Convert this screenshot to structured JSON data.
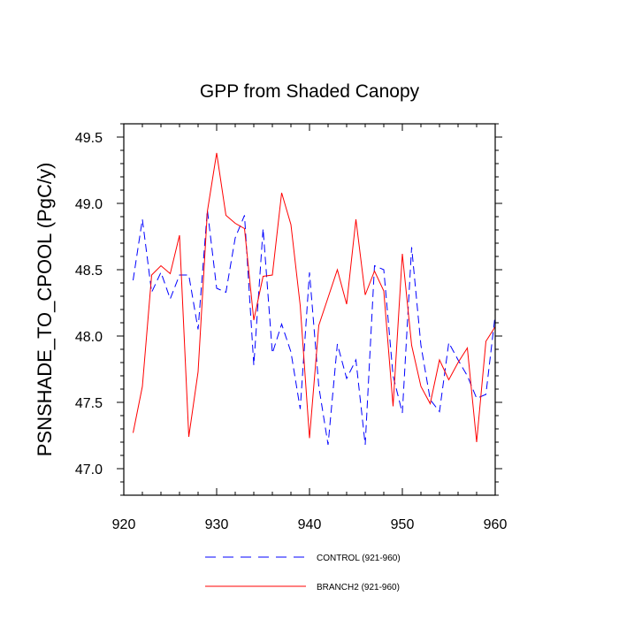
{
  "chart_data": {
    "type": "line",
    "title": "GPP from Shaded Canopy",
    "xlabel": "",
    "ylabel": "PSNSHADE_TO_CPOOL  (PgC/y)",
    "xlim": [
      920,
      960
    ],
    "ylim": [
      46.8,
      49.6
    ],
    "xticks": [
      920,
      930,
      940,
      950,
      960
    ],
    "xtick_labels": [
      "920",
      "930",
      "940",
      "950",
      "960"
    ],
    "yticks": [
      47.0,
      47.5,
      48.0,
      48.5,
      49.0,
      49.5
    ],
    "ytick_labels": [
      "47.0",
      "47.5",
      "48.0",
      "48.5",
      "49.0",
      "49.5"
    ],
    "x": [
      921,
      922,
      923,
      924,
      925,
      926,
      927,
      928,
      929,
      930,
      931,
      932,
      933,
      934,
      935,
      936,
      937,
      938,
      939,
      940,
      941,
      942,
      943,
      944,
      945,
      946,
      947,
      948,
      949,
      950,
      951,
      952,
      953,
      954,
      955,
      956,
      957,
      958,
      959,
      960
    ],
    "series": [
      {
        "name": "CONTROL (921-960)",
        "color": "#0000ff",
        "dash": "dashed",
        "values": [
          48.42,
          48.88,
          48.33,
          48.48,
          48.28,
          48.46,
          48.46,
          48.05,
          48.95,
          48.36,
          48.33,
          48.74,
          48.91,
          47.78,
          48.81,
          47.87,
          48.09,
          47.88,
          47.45,
          48.48,
          47.62,
          47.18,
          47.94,
          47.68,
          47.82,
          47.18,
          48.53,
          48.5,
          47.7,
          47.42,
          48.67,
          47.93,
          47.52,
          47.43,
          47.95,
          47.82,
          47.7,
          47.53,
          47.56,
          48.16
        ]
      },
      {
        "name": "BRANCH2 (921-960)",
        "color": "#ff0000",
        "dash": "solid",
        "values": [
          47.27,
          47.62,
          48.46,
          48.53,
          48.47,
          48.76,
          47.24,
          47.73,
          48.94,
          49.38,
          48.91,
          48.85,
          48.81,
          48.12,
          48.45,
          48.46,
          49.08,
          48.84,
          48.23,
          47.23,
          48.08,
          48.29,
          48.5,
          48.24,
          48.88,
          48.31,
          48.49,
          48.34,
          47.47,
          48.62,
          47.93,
          47.62,
          47.49,
          47.82,
          47.67,
          47.8,
          47.91,
          47.2,
          47.96,
          48.07
        ]
      }
    ],
    "legend": {
      "placement": "bottom",
      "entries": [
        "CONTROL (921-960)",
        "BRANCH2 (921-960)"
      ]
    }
  }
}
